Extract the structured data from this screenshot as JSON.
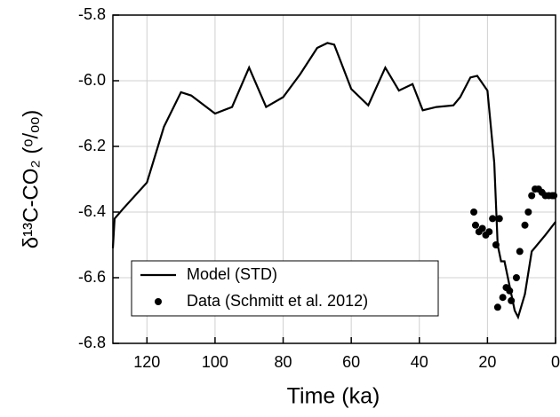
{
  "chart_data": {
    "type": "line",
    "x_label": "Time (ka)",
    "y_label": "δ¹³C-CO₂ (ᵒ/ₒₒ)",
    "xlim": [
      130,
      0
    ],
    "ylim": [
      -6.8,
      -5.8
    ],
    "xticks": [
      120,
      100,
      80,
      60,
      40,
      20,
      0
    ],
    "yticks": [
      -5.8,
      {
        "value": -6.0,
        "label": "-6.0"
      },
      -6.2,
      -6.4,
      -6.6,
      -6.8
    ],
    "grid": true,
    "legend": "lower-left",
    "series": [
      {
        "name": "Model (STD)",
        "kind": "line",
        "color": "#000000",
        "x": [
          130,
          129.5,
          127,
          120,
          115,
          110,
          107,
          100,
          95,
          90,
          85,
          80,
          75,
          70,
          67,
          65,
          60,
          55,
          50,
          46,
          42,
          39,
          35,
          30,
          28,
          25,
          23,
          20,
          18,
          17,
          16,
          15,
          12,
          11,
          9,
          7,
          3,
          0
        ],
        "values": [
          -6.51,
          -6.42,
          -6.39,
          -6.31,
          -6.14,
          -6.035,
          -6.045,
          -6.1,
          -6.08,
          -5.96,
          -6.08,
          -6.05,
          -5.98,
          -5.9,
          -5.885,
          -5.89,
          -6.025,
          -6.075,
          -5.96,
          -6.03,
          -6.01,
          -6.09,
          -6.08,
          -6.075,
          -6.05,
          -5.99,
          -5.985,
          -6.03,
          -6.25,
          -6.5,
          -6.55,
          -6.55,
          -6.7,
          -6.72,
          -6.65,
          -6.52,
          -6.47,
          -6.43
        ]
      },
      {
        "name": "Data (Schmitt et al. 2012)",
        "kind": "scatter",
        "color": "#000000",
        "x": [
          24,
          23.5,
          22.5,
          21.5,
          20.5,
          19.5,
          18.5,
          17.5,
          16.5,
          17,
          15.5,
          14.5,
          13.5,
          13,
          11.5,
          10.5,
          9,
          8,
          7,
          6,
          5,
          4,
          3,
          2,
          1,
          0.5
        ],
        "values": [
          -6.4,
          -6.44,
          -6.46,
          -6.45,
          -6.47,
          -6.46,
          -6.42,
          -6.5,
          -6.42,
          -6.69,
          -6.66,
          -6.63,
          -6.64,
          -6.67,
          -6.6,
          -6.52,
          -6.44,
          -6.4,
          -6.35,
          -6.33,
          -6.33,
          -6.34,
          -6.35,
          -6.35,
          -6.35,
          -6.35
        ]
      }
    ]
  }
}
